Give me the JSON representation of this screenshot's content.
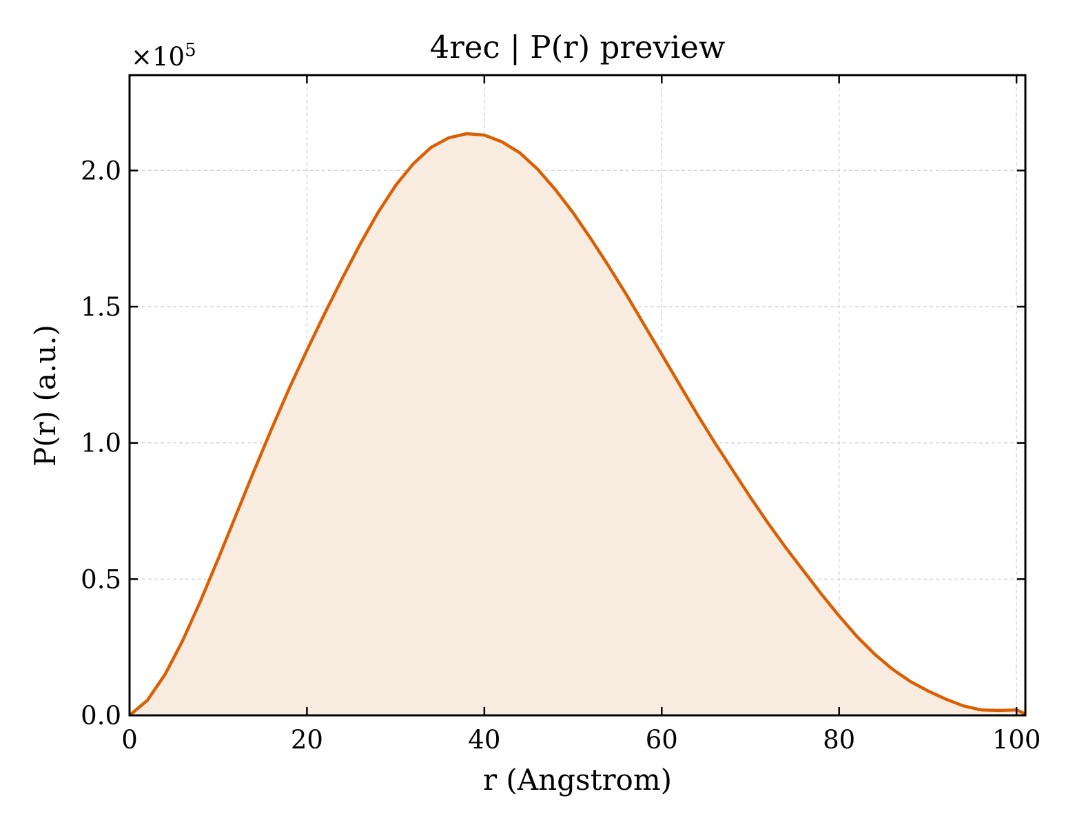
{
  "chart_data": {
    "type": "area",
    "title": "4rec | P(r) preview",
    "xlabel": "r (Angstrom)",
    "ylabel": "P(r) (a.u.)",
    "y_scale_note": "×10",
    "y_scale_exponent": "5",
    "y_multiplier": 100000,
    "xlim": [
      0,
      101
    ],
    "ylim": [
      0,
      2.35
    ],
    "x_ticks": [
      0,
      20,
      40,
      60,
      80,
      100
    ],
    "x_tick_labels": [
      "0",
      "20",
      "40",
      "60",
      "80",
      "100"
    ],
    "y_ticks": [
      0,
      0.5,
      1.0,
      1.5,
      2.0
    ],
    "y_tick_labels": [
      "0.0",
      "0.5",
      "1.0",
      "1.5",
      "2.0"
    ],
    "grid": true,
    "line_color": "#d95f02",
    "fill_color": "#f8ebe0",
    "series": [
      {
        "x": [
          0,
          2,
          4,
          6,
          8,
          10,
          12,
          14,
          16,
          18,
          20,
          22,
          24,
          26,
          28,
          30,
          32,
          34,
          36,
          38,
          40,
          42,
          44,
          46,
          48,
          50,
          52,
          54,
          56,
          58,
          60,
          62,
          64,
          66,
          68,
          70,
          72,
          74,
          76,
          78,
          80,
          82,
          84,
          86,
          88,
          90,
          92,
          94,
          96,
          98,
          100,
          101
        ],
        "y": [
          0.0,
          0.055,
          0.15,
          0.275,
          0.42,
          0.575,
          0.735,
          0.895,
          1.05,
          1.2,
          1.34,
          1.475,
          1.605,
          1.73,
          1.845,
          1.945,
          2.025,
          2.085,
          2.12,
          2.135,
          2.13,
          2.105,
          2.065,
          2.005,
          1.93,
          1.845,
          1.75,
          1.65,
          1.545,
          1.435,
          1.325,
          1.215,
          1.105,
          1.0,
          0.9,
          0.8,
          0.705,
          0.615,
          0.53,
          0.445,
          0.365,
          0.29,
          0.225,
          0.17,
          0.125,
          0.09,
          0.06,
          0.035,
          0.02,
          0.018,
          0.02,
          0.005
        ]
      }
    ]
  }
}
